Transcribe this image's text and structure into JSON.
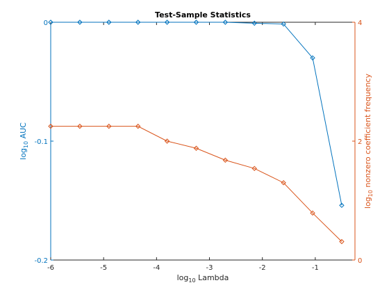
{
  "chart_data": {
    "type": "line",
    "title": "Test-Sample Statistics",
    "xlabel": {
      "prefix": "log",
      "sub": "10",
      "suffix": " Lambda"
    },
    "ylabel_left": {
      "prefix": "log",
      "sub": "10",
      "suffix": " AUC"
    },
    "ylabel_right": {
      "prefix": "log",
      "sub": "10",
      "suffix": " nonzero coefficient frequency"
    },
    "xlim": [
      -6,
      -0.25
    ],
    "ylim_left": [
      -0.2,
      0
    ],
    "ylim_right": [
      0,
      4
    ],
    "xticks": [
      -6,
      -5,
      -4,
      -3,
      -2,
      -1
    ],
    "xtick_labels": [
      "-6",
      "-5",
      "-4",
      "-3",
      "-2",
      "-1"
    ],
    "yticks_left": [
      0,
      -0.1,
      -0.2
    ],
    "ytick_labels_left": [
      "0",
      "-0.1",
      "-0.2"
    ],
    "yticks_right": [
      4,
      2,
      0
    ],
    "ytick_labels_right": [
      "4",
      "2",
      "0"
    ],
    "grid": false,
    "x": [
      -6.0,
      -5.45,
      -4.9,
      -4.35,
      -3.8,
      -3.25,
      -2.7,
      -2.15,
      -1.6,
      -1.05,
      -0.5
    ],
    "series": [
      {
        "axis": "left",
        "color": "#0072BD",
        "values": [
          0,
          0,
          0,
          0,
          0,
          0,
          0,
          -0.0008,
          -0.0015,
          -0.03,
          -0.154
        ]
      },
      {
        "axis": "right",
        "color": "#D95319",
        "values": [
          2.25,
          2.25,
          2.25,
          2.25,
          2.0,
          1.88,
          1.68,
          1.54,
          1.3,
          0.79,
          0.31
        ]
      }
    ]
  }
}
